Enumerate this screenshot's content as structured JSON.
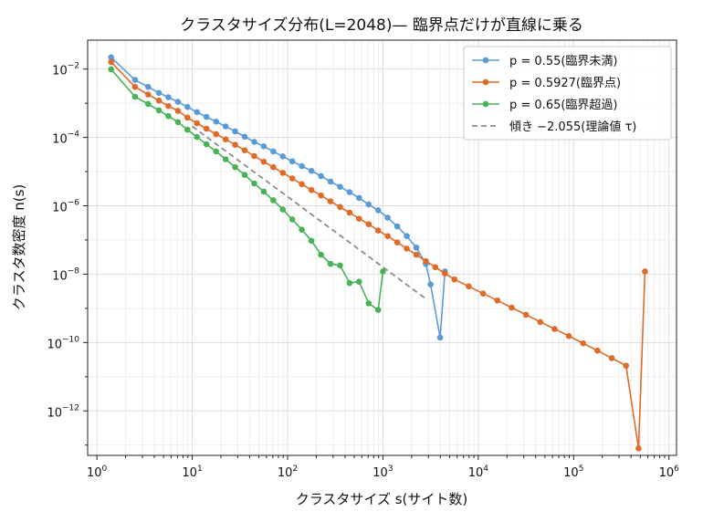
{
  "chart_data": {
    "type": "line",
    "title": "クラスタサイズ分布(L=2048)— 臨界点だけが直線に乗る",
    "xlabel": "クラスタサイズ s(サイト数)",
    "ylabel": "クラスタ数密度 n(s)",
    "xscale": "log",
    "yscale": "log",
    "xlim": [
      0.8,
      1200000
    ],
    "ylim": [
      5e-14,
      0.07
    ],
    "grid": true,
    "legend_position": "top-right",
    "x_tick_labels": [
      {
        "base": "10",
        "exp": "0"
      },
      {
        "base": "10",
        "exp": "1"
      },
      {
        "base": "10",
        "exp": "2"
      },
      {
        "base": "10",
        "exp": "3"
      },
      {
        "base": "10",
        "exp": "4"
      },
      {
        "base": "10",
        "exp": "5"
      },
      {
        "base": "10",
        "exp": "6"
      }
    ],
    "y_tick_labels": [
      {
        "base": "10",
        "exp": "−2",
        "value": 0.01
      },
      {
        "base": "10",
        "exp": "−4",
        "value": 0.0001
      },
      {
        "base": "10",
        "exp": "−6",
        "value": 1e-06
      },
      {
        "base": "10",
        "exp": "−8",
        "value": 1e-08
      },
      {
        "base": "10",
        "exp": "−10",
        "value": 1e-10
      },
      {
        "base": "10",
        "exp": "−12",
        "value": 1e-12
      }
    ],
    "series": [
      {
        "name": "p = 0.55(臨界未満)",
        "color": "#5b9bd5",
        "x": [
          1.41,
          2.51,
          3.45,
          4.47,
          5.62,
          7.08,
          8.91,
          11.2,
          14.1,
          17.8,
          22.4,
          28.2,
          35.5,
          44.7,
          56.2,
          70.8,
          89.1,
          112,
          141,
          178,
          224,
          282,
          355,
          447,
          562,
          708,
          891,
          1122,
          1413,
          1778,
          2239,
          2818,
          3162,
          3981,
          4467
        ],
        "y": [
          0.022,
          0.0048,
          0.003,
          0.002,
          0.0015,
          0.0011,
          0.00078,
          0.00055,
          0.0004,
          0.00029,
          0.00021,
          0.00015,
          0.000105,
          7.4e-05,
          5.5e-05,
          3.9e-05,
          2.8e-05,
          2e-05,
          1.45e-05,
          1.05e-05,
          7.4e-06,
          5.1e-06,
          3.6e-06,
          2.5e-06,
          1.7e-06,
          1.1e-06,
          7.4e-07,
          4.5e-07,
          2.5e-07,
          1.3e-07,
          6e-08,
          2e-08,
          5e-09,
          1.4e-10,
          1.2e-08
        ]
      },
      {
        "name": "p = 0.5927(臨界点)",
        "color": "#e06a27",
        "x": [
          1.41,
          2.51,
          3.45,
          4.47,
          5.62,
          7.08,
          8.91,
          11.2,
          14.1,
          17.8,
          22.4,
          28.2,
          35.5,
          44.7,
          56.2,
          70.8,
          89.1,
          112,
          141,
          178,
          224,
          282,
          355,
          447,
          562,
          708,
          891,
          1122,
          1413,
          1778,
          2239,
          2818,
          3548,
          4467,
          5623,
          7943,
          11220,
          15849,
          22387,
          31623,
          44668,
          63096,
          89125,
          125893,
          177828,
          251189,
          354813,
          480000,
          560000
        ],
        "y": [
          0.016,
          0.003,
          0.0018,
          0.0012,
          0.00083,
          0.0006,
          0.00038,
          0.00026,
          0.00018,
          0.000125,
          8.8e-05,
          6.1e-05,
          4.2e-05,
          2.85e-05,
          1.95e-05,
          1.35e-05,
          9.2e-06,
          6.3e-06,
          4.3e-06,
          2.9e-06,
          2e-06,
          1.35e-06,
          9.2e-07,
          6.3e-07,
          4.2e-07,
          2.9e-07,
          1.9e-07,
          1.3e-07,
          8.5e-08,
          5.6e-08,
          3.7e-08,
          2.4e-08,
          1.6e-08,
          1.05e-08,
          7e-09,
          4.4e-09,
          2.7e-09,
          1.7e-09,
          1.05e-09,
          6.5e-10,
          4e-10,
          2.5e-10,
          1.55e-10,
          9.5e-11,
          5.8e-11,
          3.5e-11,
          2.1e-11,
          8e-14,
          1.2e-08
        ]
      },
      {
        "name": "p = 0.65(臨界超過)",
        "color": "#47b356",
        "x": [
          1.41,
          2.51,
          3.45,
          4.47,
          5.62,
          7.08,
          8.91,
          11.2,
          14.1,
          17.8,
          22.4,
          28.2,
          35.5,
          44.7,
          56.2,
          70.8,
          89.1,
          112,
          141,
          178,
          224,
          282,
          355,
          447,
          562,
          708,
          891,
          1000
        ],
        "y": [
          0.0098,
          0.00155,
          0.00095,
          0.00062,
          0.00042,
          0.00028,
          0.000168,
          0.000103,
          6.3e-05,
          3.9e-05,
          2.3e-05,
          1.35e-05,
          8e-06,
          4.5e-06,
          2.6e-06,
          1.45e-06,
          7.8e-07,
          4e-07,
          2e-07,
          9.5e-08,
          3.7e-08,
          2e-08,
          1.8e-08,
          5.5e-09,
          6e-09,
          1.4e-09,
          9e-10,
          1.2e-08
        ]
      },
      {
        "name": "傾き −2.055(理論値 τ)",
        "color": "#8c8c8c",
        "dashed": true,
        "x": [
          10,
          2900
        ],
        "y": [
          0.00021,
          1.8e-09
        ]
      }
    ]
  }
}
